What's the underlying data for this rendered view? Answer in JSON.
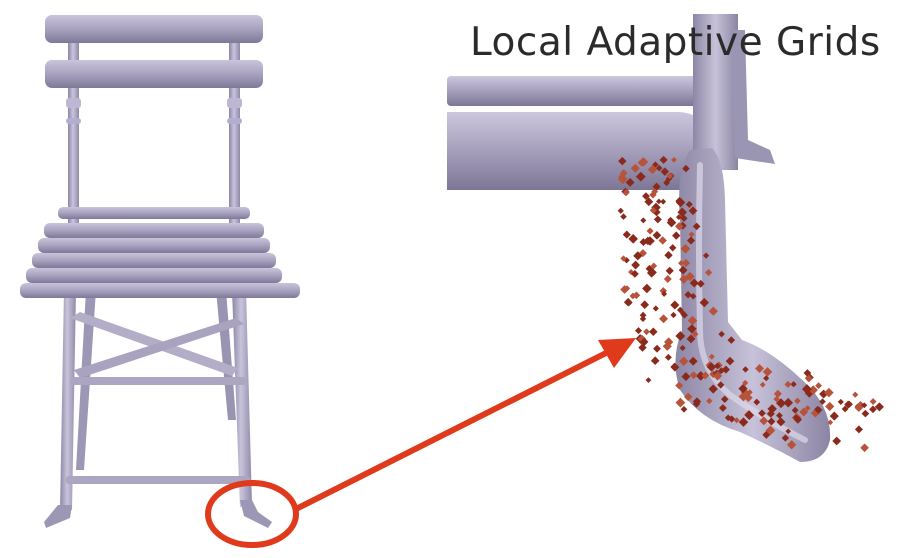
{
  "title": "Local Adaptive Grids",
  "colors": {
    "chair": "#a59fbd",
    "chair_light": "#c6c1d8",
    "chair_dark": "#7e7898",
    "grid_cell": "#8a2a1c",
    "grid_cell_light": "#b7533b",
    "highlight": "#e03a1c"
  }
}
